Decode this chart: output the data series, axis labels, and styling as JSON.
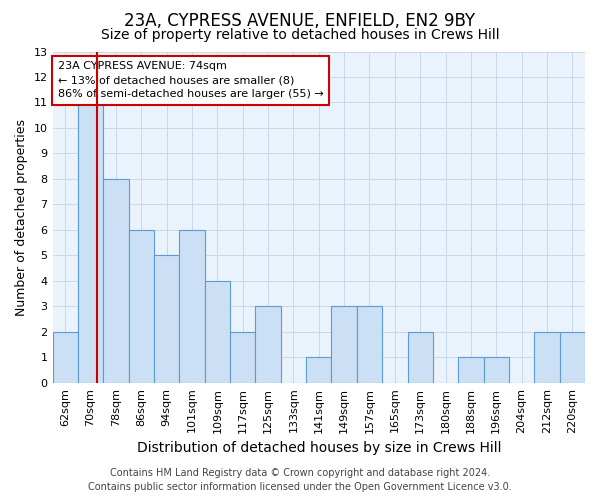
{
  "title": "23A, CYPRESS AVENUE, ENFIELD, EN2 9BY",
  "subtitle": "Size of property relative to detached houses in Crews Hill",
  "xlabel": "Distribution of detached houses by size in Crews Hill",
  "ylabel": "Number of detached properties",
  "bins": [
    "62sqm",
    "70sqm",
    "78sqm",
    "86sqm",
    "94sqm",
    "101sqm",
    "109sqm",
    "117sqm",
    "125sqm",
    "133sqm",
    "141sqm",
    "149sqm",
    "157sqm",
    "165sqm",
    "173sqm",
    "180sqm",
    "188sqm",
    "196sqm",
    "204sqm",
    "212sqm",
    "220sqm"
  ],
  "values": [
    2,
    11,
    8,
    6,
    5,
    6,
    4,
    2,
    3,
    0,
    1,
    3,
    3,
    0,
    2,
    0,
    1,
    1,
    0,
    2,
    2
  ],
  "bar_color": "#cce0f5",
  "bar_edge_color": "#5b9bd5",
  "red_line_x": 1.25,
  "annotation_line1": "23A CYPRESS AVENUE: 74sqm",
  "annotation_line2": "← 13% of detached houses are smaller (8)",
  "annotation_line3": "86% of semi-detached houses are larger (55) →",
  "annotation_box_color": "#ffffff",
  "annotation_box_edge_color": "#cc0000",
  "ylim": [
    0,
    13
  ],
  "yticks": [
    0,
    1,
    2,
    3,
    4,
    5,
    6,
    7,
    8,
    9,
    10,
    11,
    12,
    13
  ],
  "grid_color": "#c8d8e8",
  "bg_color": "#eaf2fb",
  "footer_line1": "Contains HM Land Registry data © Crown copyright and database right 2024.",
  "footer_line2": "Contains public sector information licensed under the Open Government Licence v3.0.",
  "title_fontsize": 12,
  "subtitle_fontsize": 10,
  "xlabel_fontsize": 10,
  "ylabel_fontsize": 9,
  "tick_fontsize": 8,
  "footer_fontsize": 7,
  "annotation_fontsize": 8,
  "red_line_color": "#cc0000"
}
